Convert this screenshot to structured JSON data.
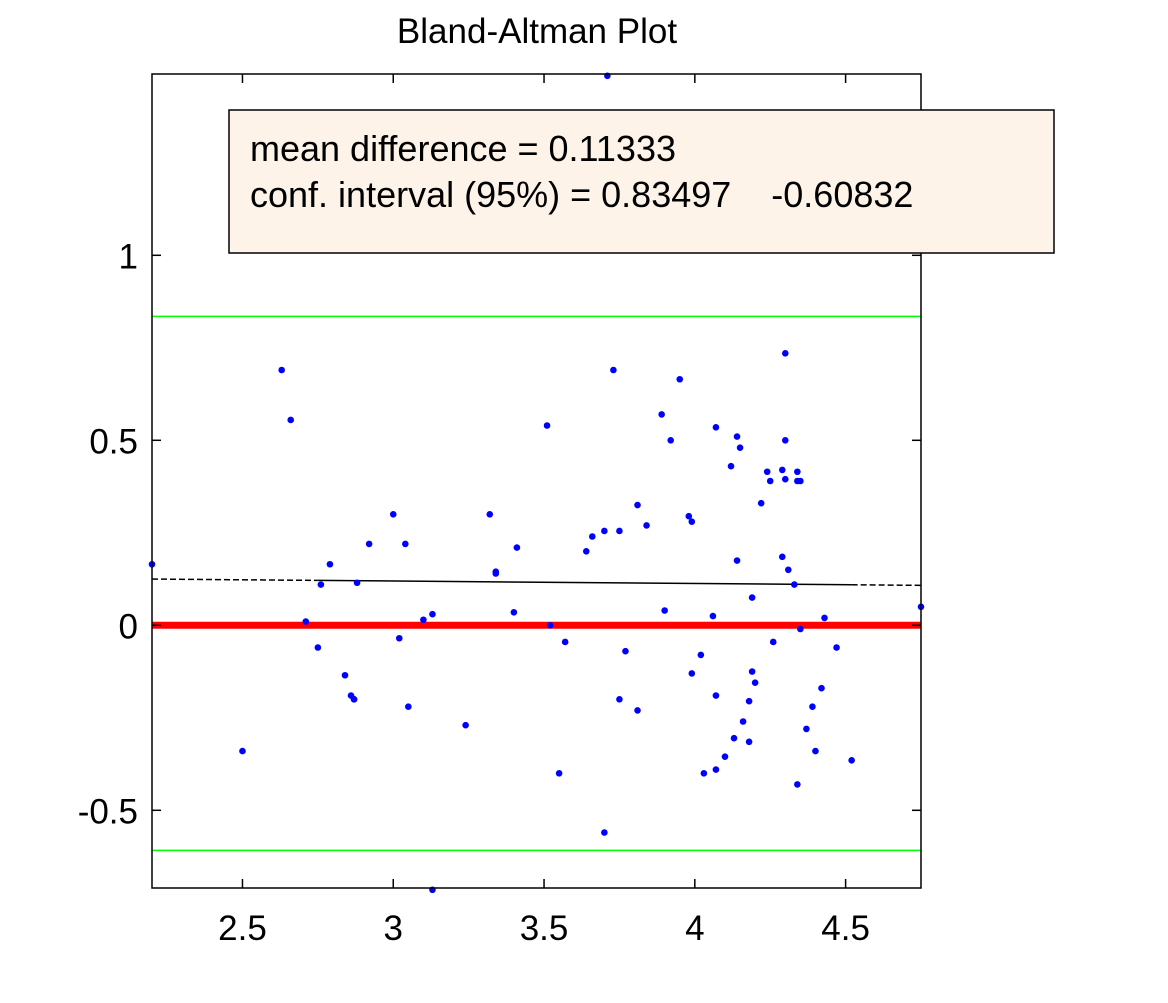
{
  "chart_data": {
    "type": "scatter",
    "title": "Bland-Altman Plot",
    "xlabel": "",
    "ylabel": "",
    "xlim": [
      2.2,
      4.75
    ],
    "ylim": [
      -0.71,
      1.49
    ],
    "xticks": [
      2.5,
      3,
      3.5,
      4,
      4.5
    ],
    "xtick_labels": [
      "2.5",
      "3",
      "3.5",
      "4",
      "4.5"
    ],
    "yticks": [
      -0.5,
      0,
      0.5,
      1
    ],
    "ytick_labels": [
      "-0.5",
      "0",
      "0.5",
      "1"
    ],
    "grid": false,
    "annotation": {
      "line1": "mean difference = 0.11333",
      "line2": "conf. interval (95%) = 0.83497    -0.60832"
    },
    "reference_lines": {
      "zero": 0,
      "upper_limit": 0.83497,
      "lower_limit": -0.60832,
      "trend_x": [
        2.2,
        4.75
      ],
      "trend_y": [
        0.125,
        0.108
      ]
    },
    "colors": {
      "points": "#0000ff",
      "zero_line": "#ff0000",
      "limit_lines": "#00ff00",
      "trend_line": "#000000",
      "annotation_bg": "#fdf3e8",
      "axes": "#000000"
    },
    "x": [
      2.2,
      2.5,
      2.63,
      2.66,
      2.71,
      2.75,
      2.76,
      2.79,
      2.84,
      2.86,
      2.87,
      2.87,
      2.88,
      2.92,
      3.0,
      3.02,
      3.04,
      3.05,
      3.1,
      3.13,
      3.13,
      3.24,
      3.32,
      3.34,
      3.34,
      3.4,
      3.41,
      3.51,
      3.52,
      3.55,
      3.57,
      3.64,
      3.66,
      3.7,
      3.7,
      3.71,
      3.73,
      3.75,
      3.75,
      3.77,
      3.81,
      3.81,
      3.84,
      3.89,
      3.9,
      3.92,
      3.95,
      3.98,
      3.99,
      3.99,
      4.02,
      4.03,
      4.06,
      4.07,
      4.07,
      4.07,
      4.1,
      4.12,
      4.13,
      4.14,
      4.14,
      4.15,
      4.16,
      4.18,
      4.18,
      4.19,
      4.19,
      4.2,
      4.22,
      4.24,
      4.25,
      4.26,
      4.29,
      4.29,
      4.3,
      4.3,
      4.3,
      4.31,
      4.33,
      4.34,
      4.34,
      4.35,
      4.34,
      4.35,
      4.37,
      4.39,
      4.4,
      4.42,
      4.43,
      4.47,
      4.52,
      4.75
    ],
    "y": [
      0.165,
      -0.34,
      0.69,
      0.555,
      0.01,
      -0.06,
      0.11,
      0.165,
      -0.135,
      -0.19,
      -0.2,
      -0.2,
      0.115,
      0.22,
      0.3,
      -0.035,
      0.22,
      -0.22,
      0.015,
      0.03,
      -0.715,
      -0.27,
      0.3,
      0.145,
      0.14,
      0.035,
      0.21,
      0.54,
      0.0,
      -0.4,
      -0.045,
      0.2,
      0.24,
      0.255,
      -0.56,
      1.485,
      0.69,
      0.255,
      -0.2,
      -0.07,
      0.325,
      -0.23,
      0.27,
      0.57,
      0.04,
      0.5,
      0.665,
      0.295,
      0.28,
      -0.13,
      -0.08,
      -0.4,
      0.025,
      0.535,
      -0.39,
      -0.19,
      -0.355,
      0.43,
      -0.305,
      0.51,
      0.175,
      0.48,
      -0.26,
      -0.315,
      -0.205,
      0.075,
      -0.125,
      -0.155,
      0.33,
      0.415,
      0.39,
      -0.045,
      0.42,
      0.185,
      0.735,
      0.5,
      0.395,
      0.15,
      0.11,
      0.415,
      -0.43,
      -0.01,
      0.39,
      0.39,
      -0.28,
      -0.22,
      -0.34,
      -0.17,
      0.02,
      -0.06,
      -0.365,
      0.05
    ]
  }
}
